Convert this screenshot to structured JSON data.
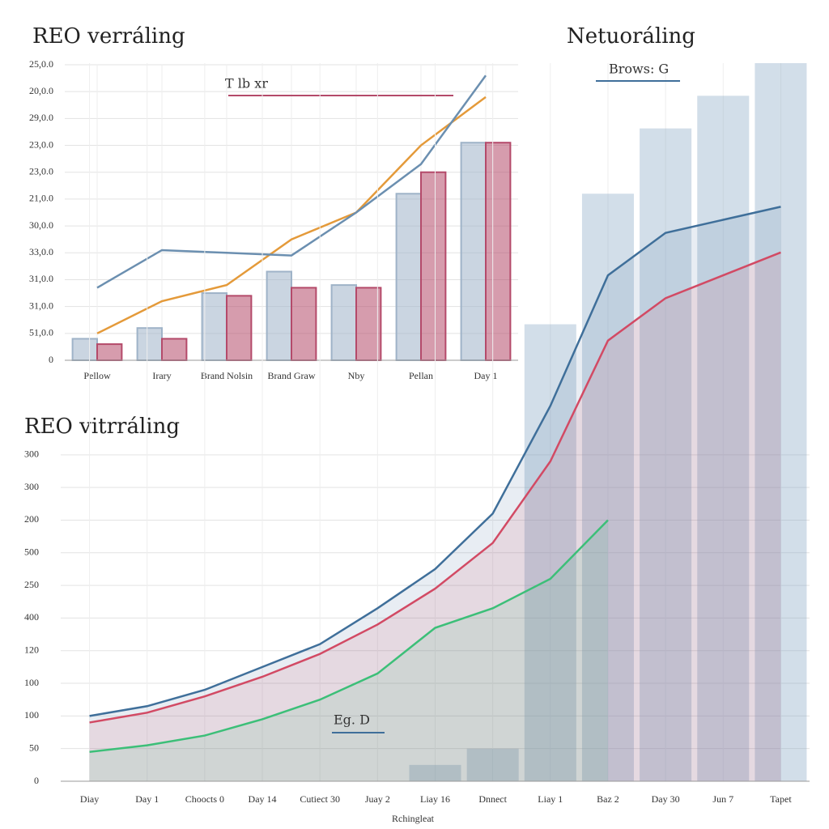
{
  "chart_data": [
    {
      "type": "bar",
      "title": "REO verráling",
      "annotation": "T lb xr",
      "categories": [
        "Pellow",
        "Irary",
        "Brand Nolsin",
        "Brand Graw",
        "Nby",
        "Pellan",
        "Day 1"
      ],
      "ylim": [
        0,
        11
      ],
      "yticks": [
        0,
        {
          "value": 1,
          "label": "51,0.0"
        },
        {
          "value": 2,
          "label": "31,0.0"
        },
        {
          "value": 3,
          "label": "31,0.0"
        },
        {
          "value": 4,
          "label": "33,0.0"
        },
        {
          "value": 5,
          "label": "30,0.0"
        },
        {
          "value": 6,
          "label": "21,0.0"
        },
        {
          "value": 7,
          "label": "23,0.0"
        },
        {
          "value": 8,
          "label": "23,0.0"
        },
        {
          "value": 9,
          "label": "29,0.0"
        },
        {
          "value": 10,
          "label": "20,0.0"
        },
        {
          "value": 11,
          "label": "25,0.0"
        }
      ],
      "grid": true,
      "series": [
        {
          "kind": "bar",
          "color": "#9fb3c8",
          "values": [
            0.8,
            1.2,
            2.5,
            3.3,
            2.8,
            6.2,
            8.1
          ]
        },
        {
          "kind": "bar",
          "color": "#b44a6a",
          "values": [
            0.6,
            0.8,
            2.4,
            2.7,
            2.7,
            7.0,
            8.1
          ]
        },
        {
          "kind": "line",
          "color": "#e49a3a",
          "values": [
            1.0,
            2.2,
            2.8,
            4.5,
            5.5,
            8.0,
            9.8
          ]
        },
        {
          "kind": "line",
          "color": "#6b8fb0",
          "values": [
            2.7,
            4.1,
            4.0,
            3.9,
            5.5,
            7.3,
            10.6
          ]
        }
      ]
    },
    {
      "type": "line",
      "title": "REO vitrráling",
      "annotations": [
        "Netuoráling",
        "Brows: G",
        "Eg. D"
      ],
      "xlabel": "Rchingleat",
      "categories": [
        "Diay",
        "Day 1",
        "Choocts 0",
        "Day 14",
        "Cutiect 30",
        "Juay 2",
        "Liay 16",
        "Dnnect",
        "Liay 1",
        "Baz 2",
        "Day 30",
        "Jun 7",
        "Tapet"
      ],
      "ylim": [
        0,
        22
      ],
      "yticks": [
        0,
        {
          "value": 1,
          "label": "50"
        },
        {
          "value": 2,
          "label": "100"
        },
        {
          "value": 3,
          "label": "100"
        },
        {
          "value": 4,
          "label": "120"
        },
        {
          "value": 5,
          "label": "400"
        },
        {
          "value": 6,
          "label": "250"
        },
        {
          "value": 7,
          "label": "500"
        },
        {
          "value": 8,
          "label": "200"
        },
        {
          "value": 9,
          "label": "300"
        },
        {
          "value": 10,
          "label": "300"
        }
      ],
      "grid": true,
      "series": [
        {
          "kind": "bar",
          "color": "#7fa0c0",
          "values": [
            null,
            null,
            null,
            null,
            null,
            null,
            0.5,
            1.0,
            14.0,
            18.0,
            20.0,
            21.0,
            22.0
          ]
        },
        {
          "kind": "line",
          "color": "#3f6f9a",
          "values": [
            2.0,
            2.3,
            2.8,
            3.5,
            4.2,
            5.3,
            6.5,
            8.2,
            11.5,
            15.5,
            16.8,
            17.2,
            17.6
          ]
        },
        {
          "kind": "line",
          "color": "#d24a64",
          "values": [
            1.8,
            2.1,
            2.6,
            3.2,
            3.9,
            4.8,
            5.9,
            7.3,
            9.8,
            13.5,
            14.8,
            15.5,
            16.2
          ]
        },
        {
          "kind": "line",
          "color": "#3cbf78",
          "values": [
            0.9,
            1.1,
            1.4,
            1.9,
            2.5,
            3.3,
            4.7,
            5.3,
            6.2,
            8.0,
            null,
            null,
            null
          ]
        }
      ]
    }
  ]
}
